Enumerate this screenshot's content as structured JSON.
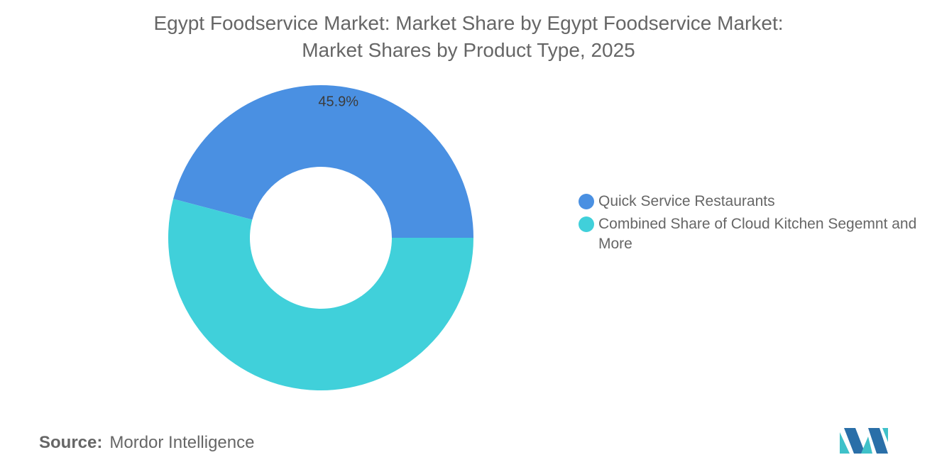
{
  "title": {
    "line1": "Egypt Foodservice Market: Market Share by Egypt Foodservice Market:",
    "line2": "Market Shares by Product Type, 2025"
  },
  "chart_data": {
    "type": "pie",
    "donut": true,
    "title": "Egypt Foodservice Market: Market Share by Egypt Foodservice Market: Market Shares by Product Type, 2025",
    "categories": [
      "Quick Service Restaurants",
      "Combined Share of Cloud Kitchen Segemnt and More"
    ],
    "values": [
      45.9,
      54.1
    ],
    "data_labels": [
      "45.9%",
      ""
    ],
    "colors": [
      "#4a90e2",
      "#40d0da"
    ],
    "legend_position": "right"
  },
  "legend": {
    "items": [
      {
        "label": "Quick Service Restaurants",
        "color": "#4a90e2"
      },
      {
        "label": "Combined Share of Cloud Kitchen Segemnt and More",
        "color": "#40d0da"
      }
    ]
  },
  "source": {
    "key": "Source:",
    "value": "Mordor Intelligence"
  },
  "logo": {
    "icon": "mordor-intelligence-logo-icon"
  }
}
